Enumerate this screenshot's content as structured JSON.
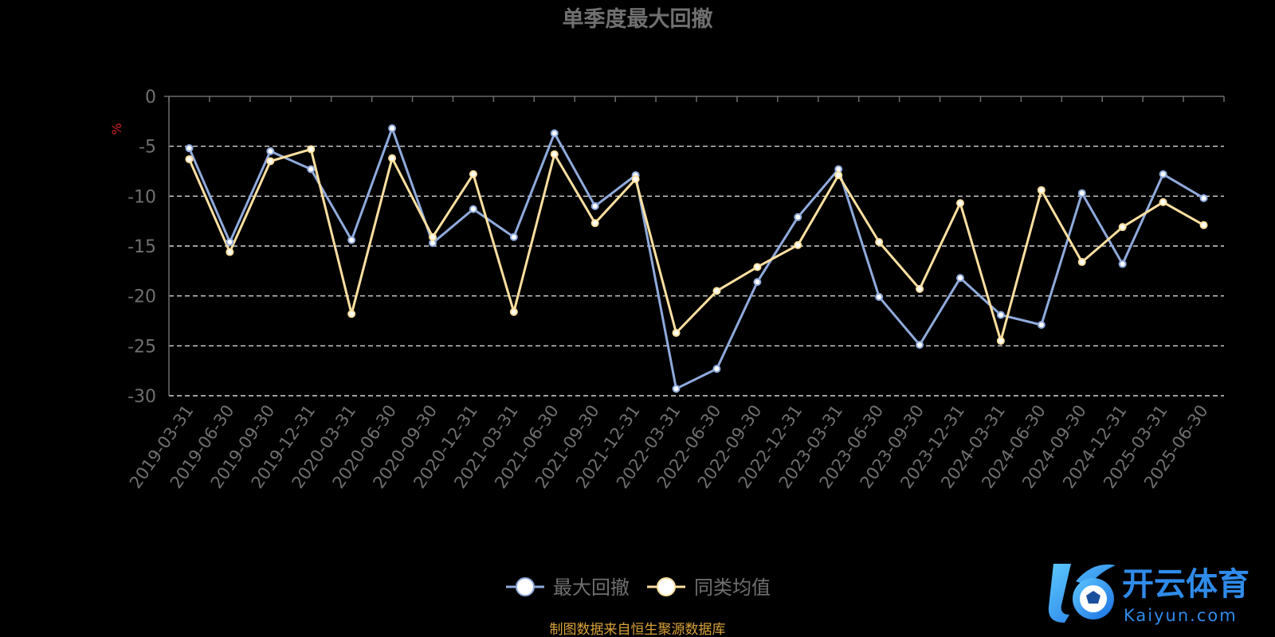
{
  "chart_data": {
    "type": "line",
    "title": "单季度最大回撤",
    "ylabel": "%",
    "xlabel": "",
    "ylim": [
      -30,
      0
    ],
    "yticks": [
      0,
      -5,
      -10,
      -15,
      -20,
      -25,
      -30
    ],
    "grid": "dashed horizontal",
    "legend_position": "bottom-center",
    "categories": [
      "2019-03-31",
      "2019-06-30",
      "2019-09-30",
      "2019-12-31",
      "2020-03-31",
      "2020-06-30",
      "2020-09-30",
      "2020-12-31",
      "2021-03-31",
      "2021-06-30",
      "2021-09-30",
      "2021-12-31",
      "2022-03-31",
      "2022-06-30",
      "2022-09-30",
      "2022-12-31",
      "2023-03-31",
      "2023-06-30",
      "2023-09-30",
      "2023-12-31",
      "2024-03-31",
      "2024-06-30",
      "2024-09-30",
      "2024-12-31",
      "2025-03-31",
      "2025-06-30"
    ],
    "series": [
      {
        "name": "最大回撤",
        "color": "#8FAADC",
        "values": [
          -5.2,
          -14.6,
          -5.5,
          -7.3,
          -14.4,
          -3.2,
          -14.7,
          -11.3,
          -14.1,
          -3.7,
          -11.0,
          -7.9,
          -29.3,
          -27.3,
          -18.6,
          -12.1,
          -7.3,
          -20.1,
          -24.9,
          -18.2,
          -21.9,
          -22.9,
          -9.7,
          -16.8,
          -7.8,
          -10.2
        ]
      },
      {
        "name": "同类均值",
        "color": "#FFE0A0",
        "values": [
          -6.3,
          -15.6,
          -6.5,
          -5.3,
          -21.8,
          -6.2,
          -14.1,
          -7.8,
          -21.6,
          -5.8,
          -12.7,
          -8.3,
          -23.7,
          -19.5,
          -17.1,
          -14.9,
          -7.9,
          -14.6,
          -19.3,
          -10.7,
          -24.5,
          -9.4,
          -16.6,
          -13.1,
          -10.6,
          -12.9
        ]
      }
    ]
  },
  "footer": {
    "source_text": "制图数据来自恒生聚源数据库"
  },
  "logo": {
    "brand_text": "开云体育",
    "domain_text": "Kaiyun.com"
  },
  "colors": {
    "background": "#000000",
    "axis": "#6E6E6E",
    "tick_label": "#707070",
    "title": "#707070",
    "ylabel": "#D62020",
    "footer": "#D9A23A",
    "grid": "#FFFFFF"
  }
}
